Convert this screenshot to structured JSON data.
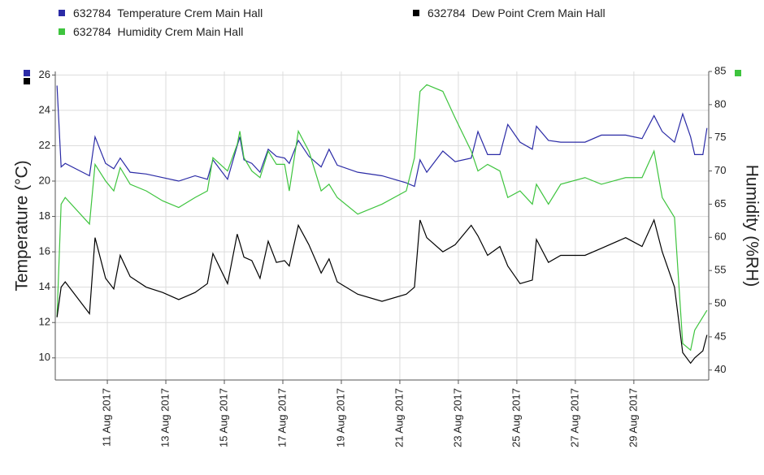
{
  "chart_data": {
    "type": "line",
    "x": [
      9.28,
      9.42,
      9.56,
      10.39,
      10.58,
      10.94,
      11.22,
      11.44,
      11.78,
      12.33,
      12.89,
      13.44,
      14.0,
      14.42,
      14.61,
      15.11,
      15.44,
      15.53,
      15.67,
      15.94,
      16.22,
      16.5,
      16.78,
      17.06,
      17.22,
      17.53,
      17.89,
      18.31,
      18.58,
      18.86,
      19.56,
      20.39,
      21.22,
      21.5,
      21.69,
      21.92,
      22.47,
      22.89,
      23.44,
      23.67,
      24.0,
      24.42,
      24.69,
      25.11,
      25.53,
      25.67,
      26.08,
      26.5,
      27.33,
      27.89,
      28.72,
      29.28,
      29.69,
      29.97,
      30.39,
      30.67,
      30.94,
      31.08,
      31.36,
      31.5
    ],
    "series": [
      {
        "name": "632784  Temperature Crem Main Hall",
        "color": "#2b2ba6",
        "axis": "y",
        "values": [
          25.4,
          20.8,
          21.0,
          20.3,
          22.5,
          21.0,
          20.7,
          21.3,
          20.5,
          20.4,
          20.2,
          20.0,
          20.3,
          20.1,
          21.2,
          20.1,
          22.0,
          22.5,
          21.2,
          21.0,
          20.5,
          21.8,
          21.4,
          21.3,
          21.0,
          22.3,
          21.4,
          20.8,
          21.8,
          20.9,
          20.5,
          20.3,
          19.9,
          19.7,
          21.2,
          20.5,
          21.7,
          21.1,
          21.3,
          22.8,
          21.5,
          21.5,
          23.2,
          22.2,
          21.8,
          23.1,
          22.3,
          22.2,
          22.2,
          22.6,
          22.6,
          22.4,
          23.7,
          22.8,
          22.2,
          23.8,
          22.5,
          21.5,
          21.5,
          23.0
        ]
      },
      {
        "name": "632784  Humidity Crem Main Hall",
        "color": "#3ec43e",
        "axis": "y2",
        "values": [
          48,
          65,
          66,
          62,
          71,
          68.5,
          67,
          70.5,
          68,
          67,
          65.5,
          64.5,
          66,
          67,
          72,
          70,
          74,
          76,
          72,
          70,
          69,
          73,
          71,
          71,
          67,
          76,
          73,
          67,
          68,
          66,
          63.5,
          65,
          67,
          72,
          82,
          83,
          82,
          78,
          73,
          70,
          71,
          70,
          66,
          67,
          65,
          68,
          65,
          68,
          69,
          68,
          69,
          69,
          73,
          66,
          63,
          44,
          43,
          46,
          48,
          49
        ]
      },
      {
        "name": "632784  Dew Point Crem Main Hall",
        "color": "#000000",
        "axis": "y",
        "values": [
          12.3,
          14.0,
          14.3,
          12.5,
          16.8,
          14.5,
          13.9,
          15.8,
          14.6,
          14.0,
          13.7,
          13.3,
          13.7,
          14.2,
          15.9,
          14.2,
          17.0,
          16.5,
          15.7,
          15.5,
          14.5,
          16.6,
          15.4,
          15.5,
          15.2,
          17.5,
          16.4,
          14.8,
          15.6,
          14.3,
          13.6,
          13.2,
          13.6,
          14.0,
          17.8,
          16.8,
          16.0,
          16.4,
          17.5,
          16.9,
          15.8,
          16.3,
          15.2,
          14.2,
          14.4,
          16.7,
          15.4,
          15.8,
          15.8,
          16.2,
          16.8,
          16.3,
          17.8,
          16.0,
          14.0,
          10.3,
          9.7,
          10.0,
          10.4,
          11.3
        ]
      }
    ],
    "y_label": "Temperature (°C)",
    "y2_label": "Humidity (%RH)",
    "xlim": [
      9.22,
      31.56
    ],
    "xticks": [
      {
        "value": 11,
        "label": "11 Aug 2017"
      },
      {
        "value": 13,
        "label": "13 Aug 2017"
      },
      {
        "value": 15,
        "label": "15 Aug 2017"
      },
      {
        "value": 17,
        "label": "17 Aug 2017"
      },
      {
        "value": 19,
        "label": "19 Aug 2017"
      },
      {
        "value": 21,
        "label": "21 Aug 2017"
      },
      {
        "value": 23,
        "label": "23 Aug 2017"
      },
      {
        "value": 25,
        "label": "25 Aug 2017"
      },
      {
        "value": 27,
        "label": "27 Aug 2017"
      },
      {
        "value": 29,
        "label": "29 Aug 2017"
      }
    ],
    "ylim": [
      8.75,
      26.2
    ],
    "yticks": [
      10,
      12,
      14,
      16,
      18,
      20,
      22,
      24,
      26
    ],
    "y2lim": [
      38.5,
      85
    ],
    "y2ticks": [
      40,
      45,
      50,
      55,
      60,
      65,
      70,
      75,
      80,
      85
    ],
    "grid": true
  }
}
